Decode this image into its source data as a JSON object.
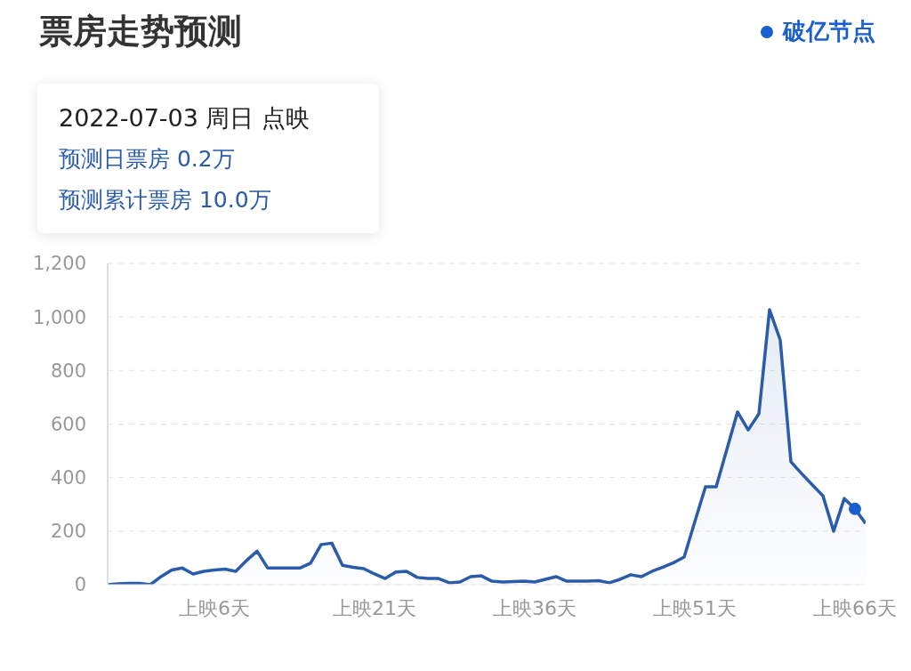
{
  "chart_data": {
    "type": "area",
    "title": "票房走势预测",
    "annotations": [
      "2022-07-03 周日 点映",
      "预测日票房 0.2万",
      "预测累计票房 10.0万"
    ],
    "categories": [
      null,
      null,
      null,
      null,
      null,
      null,
      null,
      null,
      null,
      null,
      "上映6天",
      null,
      null,
      null,
      null,
      null,
      null,
      null,
      null,
      null,
      null,
      null,
      null,
      null,
      null,
      "上映21天",
      null,
      null,
      null,
      null,
      null,
      null,
      null,
      null,
      null,
      null,
      null,
      null,
      null,
      null,
      "上映36天",
      null,
      null,
      null,
      null,
      null,
      null,
      null,
      null,
      null,
      null,
      null,
      null,
      null,
      null,
      "上映51天",
      null,
      null,
      null,
      null,
      null,
      null,
      null,
      null,
      null,
      null,
      null,
      null,
      null,
      null,
      "上映66天",
      null
    ],
    "series": [
      {
        "color": "#2a5caa",
        "values": [
          0,
          3,
          5,
          5,
          0,
          30,
          55,
          62,
          40,
          50,
          55,
          58,
          50,
          90,
          125,
          62,
          62,
          62,
          62,
          80,
          150,
          155,
          72,
          65,
          60,
          40,
          23,
          47,
          50,
          27,
          23,
          23,
          7,
          10,
          30,
          33,
          13,
          10,
          12,
          13,
          10,
          20,
          30,
          13,
          13,
          13,
          15,
          7,
          20,
          37,
          30,
          50,
          65,
          82,
          103,
          235,
          366,
          366,
          505,
          645,
          578,
          638,
          1027,
          914,
          459,
          415,
          373,
          332,
          200,
          322,
          283,
          229
        ]
      },
      {
        "type": "scatter",
        "name": "破亿节点",
        "color": "#1a5fd0",
        "x": [
          "上映66天"
        ],
        "values": [
          283
        ]
      }
    ],
    "ylim": [
      0,
      1200
    ],
    "yticks": [
      0,
      200,
      400,
      600,
      800,
      {
        "value": 1000,
        "label": "1,000"
      },
      {
        "value": 1200,
        "label": "1,200"
      }
    ],
    "grid": "y",
    "legend": "top right",
    "line_style": "solid"
  }
}
